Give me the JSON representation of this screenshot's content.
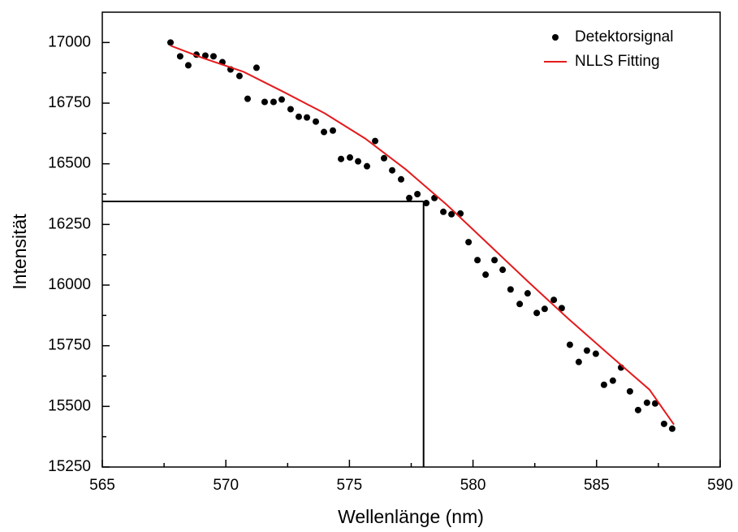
{
  "chart_data": {
    "type": "scatter",
    "x_label": "Wellenlänge (nm)",
    "y_label": "Intensität",
    "xlim": [
      565,
      590
    ],
    "xticks": [
      565,
      570,
      575,
      580,
      585,
      590
    ],
    "ylim": [
      15250,
      17125
    ],
    "yticks": [
      15250,
      15500,
      15750,
      16000,
      16250,
      16500,
      16750,
      17000
    ],
    "legend": "top-right",
    "series": [
      {
        "name": "Detektorsignal",
        "type": "scatter",
        "color": "#000000",
        "x": [
          567.76,
          568.15,
          568.48,
          568.81,
          569.17,
          569.5,
          569.86,
          570.19,
          570.55,
          570.88,
          571.24,
          571.57,
          571.93,
          572.26,
          572.62,
          572.95,
          573.28,
          573.64,
          573.97,
          574.33,
          574.66,
          575.02,
          575.35,
          575.71,
          576.04,
          576.4,
          576.73,
          577.09,
          577.42,
          577.75,
          578.11,
          578.44,
          578.8,
          579.13,
          579.49,
          579.82,
          580.18,
          580.51,
          580.87,
          581.2,
          581.52,
          581.89,
          582.21,
          582.58,
          582.9,
          583.27,
          583.59,
          583.92,
          584.28,
          584.61,
          584.97,
          585.3,
          585.66,
          585.99,
          586.35,
          586.68,
          587.04,
          587.37,
          587.73,
          588.06
        ],
        "values": [
          17000,
          16943,
          16906,
          16950,
          16946,
          16943,
          16919,
          16889,
          16862,
          16768,
          16896,
          16755,
          16755,
          16765,
          16725,
          16694,
          16691,
          16674,
          16631,
          16637,
          16520,
          16526,
          16510,
          16490,
          16594,
          16523,
          16473,
          16436,
          16359,
          16375,
          16338,
          16359,
          16302,
          16292,
          16295,
          16177,
          16103,
          16043,
          16103,
          16063,
          15982,
          15922,
          15966,
          15885,
          15902,
          15939,
          15905,
          15754,
          15683,
          15730,
          15717,
          15589,
          15606,
          15660,
          15562,
          15485,
          15515,
          15512,
          15428,
          15408
        ]
      },
      {
        "name": "NLLS Fitting",
        "type": "line",
        "color": "#e41a1c",
        "x": [
          567.76,
          569.07,
          570.72,
          572.36,
          574.0,
          575.64,
          577.29,
          578.93,
          580.57,
          582.21,
          583.86,
          585.5,
          587.14,
          588.13
        ],
        "values": [
          16987,
          16936,
          16879,
          16795,
          16708,
          16604,
          16476,
          16332,
          16174,
          16016,
          15861,
          15714,
          15569,
          15425
        ]
      }
    ],
    "crosshair": {
      "x": 578,
      "y": 16345
    }
  }
}
